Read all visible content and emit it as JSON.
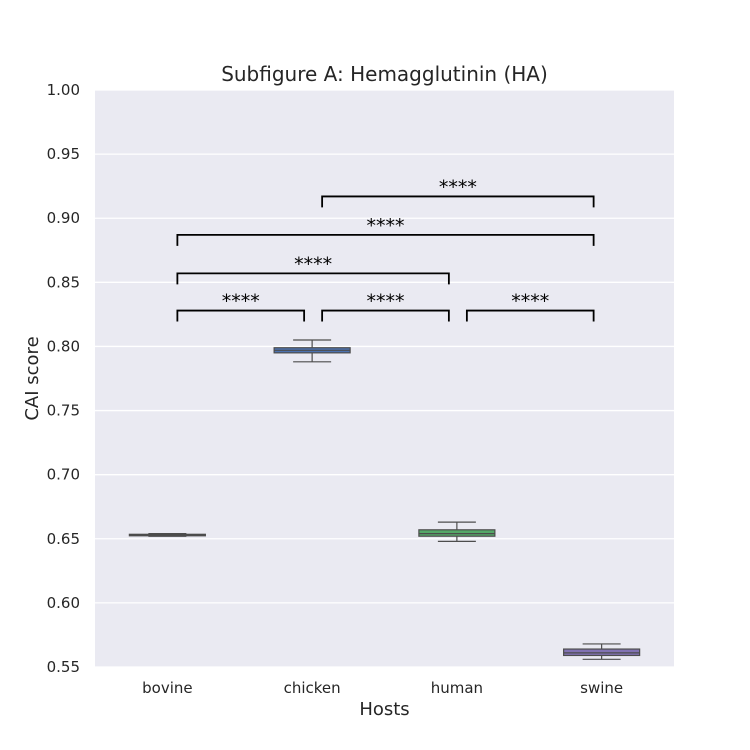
{
  "chart_data": {
    "type": "box",
    "title": "Subfigure A: Hemagglutinin (HA)",
    "xlabel": "Hosts",
    "ylabel": "CAI score",
    "ylim": [
      0.55,
      1.0
    ],
    "yticks": [
      "0.55",
      "0.60",
      "0.65",
      "0.70",
      "0.75",
      "0.80",
      "0.85",
      "0.90",
      "0.95",
      "1.00"
    ],
    "grid": true,
    "categories": [
      "bovine",
      "chicken",
      "human",
      "swine"
    ],
    "boxes": [
      {
        "category": "bovine",
        "whisker_low": 0.652,
        "q1": 0.6525,
        "median": 0.653,
        "q3": 0.6535,
        "whisker_high": 0.654,
        "color": "#4c72b0"
      },
      {
        "category": "chicken",
        "whisker_low": 0.788,
        "q1": 0.795,
        "median": 0.797,
        "q3": 0.799,
        "whisker_high": 0.805,
        "color": "#4c72b0"
      },
      {
        "category": "human",
        "whisker_low": 0.648,
        "q1": 0.652,
        "median": 0.654,
        "q3": 0.657,
        "whisker_high": 0.663,
        "color": "#55a868"
      },
      {
        "category": "swine",
        "whisker_low": 0.556,
        "q1": 0.559,
        "median": 0.561,
        "q3": 0.564,
        "whisker_high": 0.568,
        "color": "#8172b3"
      }
    ],
    "annotations": [
      {
        "from": "chicken",
        "to": "swine",
        "y": 0.917,
        "label": "****"
      },
      {
        "from": "bovine",
        "to": "swine",
        "y": 0.887,
        "label": "****"
      },
      {
        "from": "bovine",
        "to": "human",
        "y": 0.857,
        "label": "****"
      },
      {
        "from": "bovine",
        "to": "chicken",
        "y": 0.828,
        "label": "****"
      },
      {
        "from": "chicken",
        "to": "human",
        "y": 0.828,
        "label": "****"
      },
      {
        "from": "human",
        "to": "swine",
        "y": 0.828,
        "label": "****"
      }
    ],
    "colors": {
      "plot_bg": "#eaeaf2",
      "grid": "#ffffff",
      "whisker": "#4d4d4d",
      "bracket": "#000000"
    }
  }
}
